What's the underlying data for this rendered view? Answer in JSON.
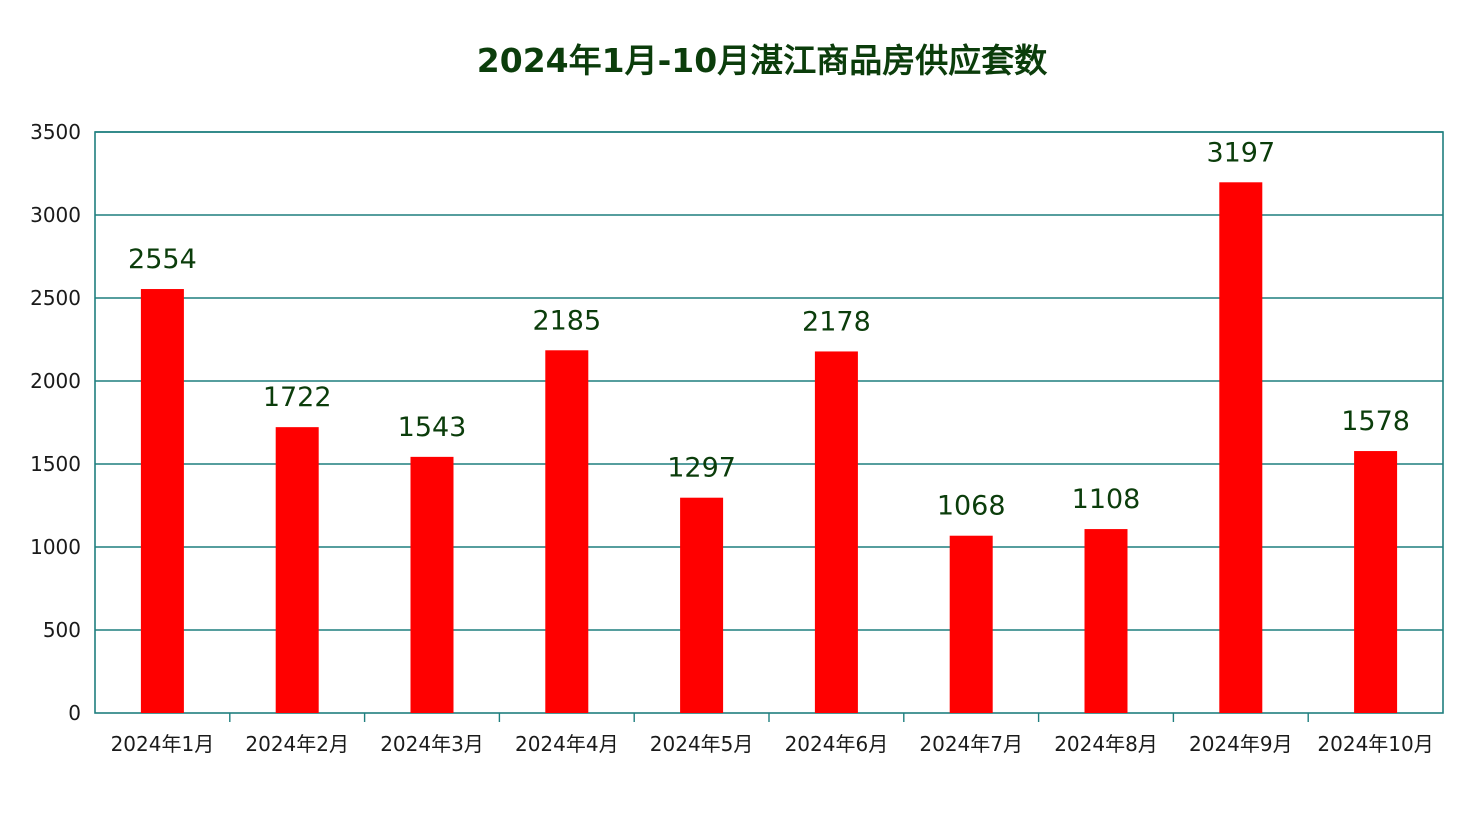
{
  "chart_data": {
    "type": "bar",
    "title": "2024年1月-10月湛江商品房供应套数",
    "xlabel": "",
    "ylabel": "",
    "categories": [
      "2024年1月",
      "2024年2月",
      "2024年3月",
      "2024年4月",
      "2024年5月",
      "2024年6月",
      "2024年7月",
      "2024年8月",
      "2024年9月",
      "2024年10月"
    ],
    "values": [
      2554,
      1722,
      1543,
      2185,
      1297,
      2178,
      1068,
      1108,
      3197,
      1578
    ],
    "ylim": [
      0,
      3500
    ],
    "yticks": [
      0,
      500,
      1000,
      1500,
      2000,
      2500,
      3000,
      3500
    ],
    "grid": true,
    "legend": "none",
    "colors": {
      "bar": "#ff0000",
      "grid": "#1f7f7f",
      "axis": "#1f7f7f",
      "title": "#0b3d0b",
      "data_label": "#0b3d0b"
    }
  }
}
